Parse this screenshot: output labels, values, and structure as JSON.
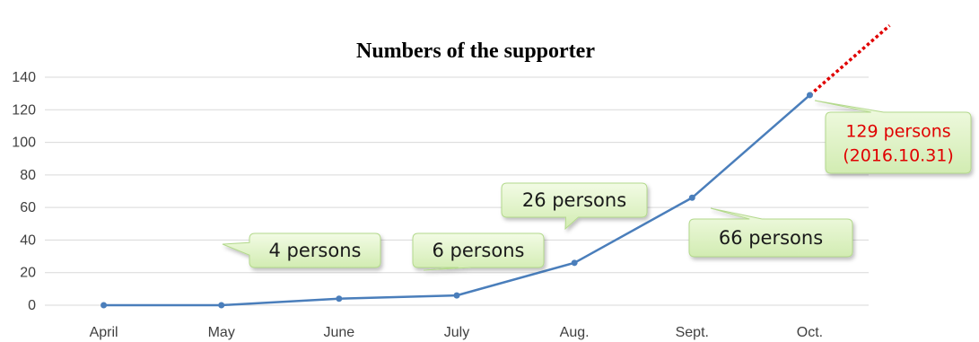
{
  "chart_data": {
    "type": "line",
    "title": "Numbers of the supporter",
    "categories": [
      "April",
      "May",
      "June",
      "July",
      "Aug.",
      "Sept.",
      "Oct."
    ],
    "series": [
      {
        "values": [
          0,
          0,
          4,
          6,
          26,
          66,
          129
        ],
        "color": "#4a7ebb"
      }
    ],
    "ylim": [
      0,
      140
    ],
    "yticks": [
      0,
      20,
      40,
      60,
      80,
      100,
      120,
      140
    ],
    "grid": true,
    "trend_extension": {
      "style": "dotted",
      "color": "#e00000"
    },
    "annotations": [
      {
        "category": "June",
        "value": 4,
        "lines": [
          "4 persons"
        ]
      },
      {
        "category": "July",
        "value": 6,
        "lines": [
          "6 persons"
        ]
      },
      {
        "category": "Aug.",
        "value": 26,
        "lines": [
          "26 persons"
        ]
      },
      {
        "category": "Sept.",
        "value": 66,
        "lines": [
          "66 persons"
        ]
      },
      {
        "category": "Oct.",
        "value": 129,
        "lines": [
          "129 persons",
          "(2016.10.31)"
        ],
        "text_color": "#e00000"
      }
    ]
  }
}
